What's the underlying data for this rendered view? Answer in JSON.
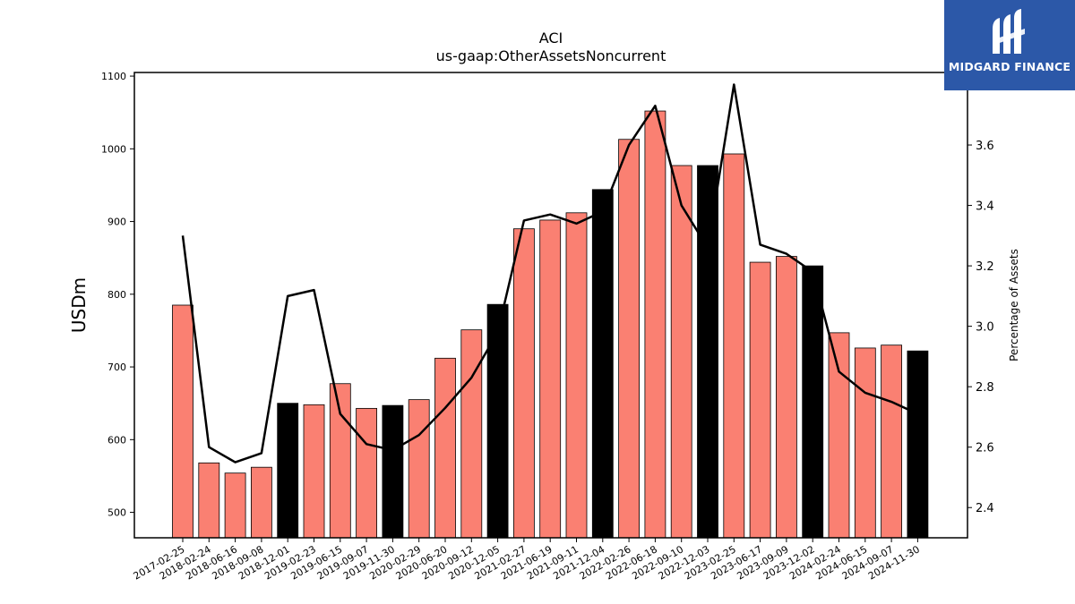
{
  "chart_data": {
    "type": "bar",
    "title": "ACI",
    "subtitle": "us-gaap:OtherAssetsNoncurrent",
    "ylabel": "USDm",
    "y2label": "Percentage of Assets",
    "ylim": [
      465,
      1105
    ],
    "y2lim": [
      2.3,
      3.84
    ],
    "yticks": [
      500,
      600,
      700,
      800,
      900,
      1000,
      1100
    ],
    "y2ticks": [
      2.4,
      2.6,
      2.8,
      3.0,
      3.2,
      3.4,
      3.6,
      3.8
    ],
    "grid": false,
    "categories": [
      "2017-02-25",
      "2018-02-24",
      "2018-06-16",
      "2018-09-08",
      "2018-12-01",
      "2019-02-23",
      "2019-06-15",
      "2019-09-07",
      "2019-11-30",
      "2020-02-29",
      "2020-06-20",
      "2020-09-12",
      "2020-12-05",
      "2021-02-27",
      "2021-06-19",
      "2021-09-11",
      "2021-12-04",
      "2022-02-26",
      "2022-06-18",
      "2022-09-10",
      "2022-12-03",
      "2023-02-25",
      "2023-06-17",
      "2023-09-09",
      "2023-12-02",
      "2024-02-24",
      "2024-06-15",
      "2024-09-07",
      "2024-11-30"
    ],
    "values": [
      785,
      568,
      554,
      562,
      650,
      648,
      677,
      643,
      647,
      655,
      712,
      751,
      786,
      890,
      902,
      912,
      944,
      1013,
      1052,
      977,
      977,
      993,
      844,
      852,
      839,
      747,
      726,
      730,
      722
    ],
    "bar_colors": [
      "#fa8072",
      "#fa8072",
      "#fa8072",
      "#fa8072",
      "#000000",
      "#fa8072",
      "#fa8072",
      "#fa8072",
      "#000000",
      "#fa8072",
      "#fa8072",
      "#fa8072",
      "#000000",
      "#fa8072",
      "#fa8072",
      "#fa8072",
      "#000000",
      "#fa8072",
      "#fa8072",
      "#fa8072",
      "#000000",
      "#fa8072",
      "#fa8072",
      "#fa8072",
      "#000000",
      "#fa8072",
      "#fa8072",
      "#fa8072",
      "#000000"
    ],
    "line_values": [
      3.3,
      2.6,
      2.55,
      2.58,
      3.1,
      3.12,
      2.71,
      2.61,
      2.59,
      2.64,
      2.73,
      2.83,
      2.98,
      3.35,
      3.37,
      3.34,
      3.38,
      3.6,
      3.73,
      3.4,
      3.26,
      3.8,
      3.27,
      3.24,
      3.18,
      2.85,
      2.78,
      2.75,
      2.71
    ],
    "line_color": "#000000"
  },
  "logo": {
    "text": "MIDGARD FINANCE",
    "icon": "midgard-logo-icon",
    "background": "#2c58a8"
  }
}
